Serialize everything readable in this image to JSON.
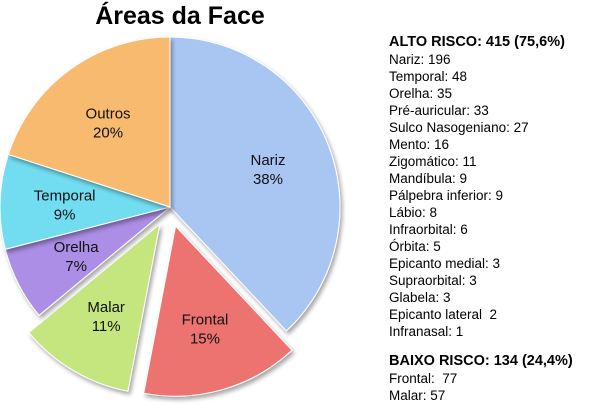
{
  "colors": {
    "nariz": "#A9C6F3",
    "frontal": "#EC7370",
    "malar": "#C5E57F",
    "orelha": "#AC8EE6",
    "temporal": "#72DDF1",
    "outros": "#F7BA6E"
  },
  "chart_data": {
    "type": "pie",
    "title": "Áreas da Face",
    "slices": [
      {
        "name": "Nariz",
        "value": 38,
        "label": "38%",
        "color": "#A9C6F3",
        "exploded": false
      },
      {
        "name": "Frontal",
        "value": 15,
        "label": "15%",
        "color": "#EC7370",
        "exploded": true
      },
      {
        "name": "Malar",
        "value": 11,
        "label": "11%",
        "color": "#C5E57F",
        "exploded": true
      },
      {
        "name": "Orelha",
        "value": 7,
        "label": "7%",
        "color": "#AC8EE6",
        "exploded": false
      },
      {
        "name": "Temporal",
        "value": 9,
        "label": "9%",
        "color": "#72DDF1",
        "exploded": false
      },
      {
        "name": "Outros",
        "value": 20,
        "label": "20%",
        "color": "#F7BA6E",
        "exploded": false
      }
    ]
  },
  "legend": {
    "high_header": "ALTO RISCO: 415 (75,6%)",
    "high_items": [
      "Nariz: 196",
      "Temporal: 48",
      "Orelha: 35",
      "Pré-auricular: 33",
      "Sulco Nasogeniano: 27",
      "Mento: 16",
      "Zigomático: 11",
      "Mandíbula: 9",
      "Pálpebra inferior: 9",
      "Lábio: 8",
      "Infraorbital: 6",
      "Órbita: 5",
      "Epicanto medial: 3",
      "Supraorbital: 3",
      "Glabela: 3",
      "Epicanto lateral  2",
      "Infranasal: 1"
    ],
    "low_header": "BAIXO RISCO: 134 (24,4%)",
    "low_items": [
      "Frontal:  77",
      "Malar: 57"
    ]
  }
}
